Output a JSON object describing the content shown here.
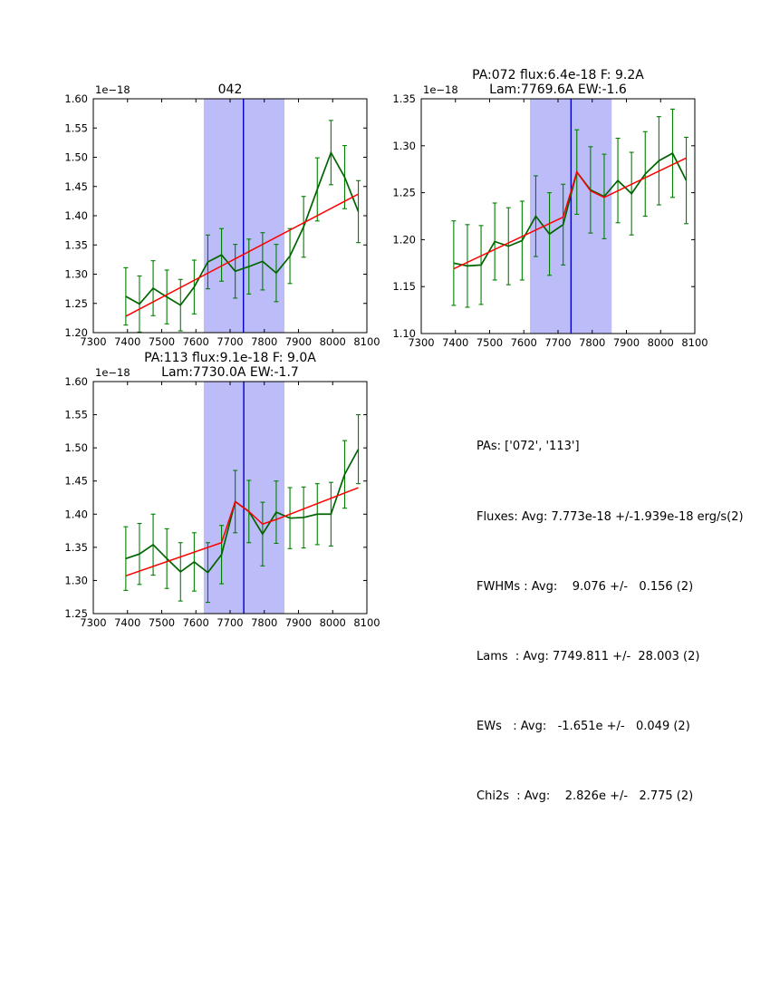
{
  "figure": {
    "background": "#ffffff"
  },
  "colors": {
    "data_line": "#006400",
    "error_bar": "#007f00",
    "fit_line": "#ff0000",
    "band_fill": "#bcbcf8",
    "marker_line": "#0000cc",
    "axis": "#000000",
    "text": "#000000"
  },
  "stats_panel": {
    "lines": [
      "PAs: ['072', '113']",
      "Fluxes: Avg: 7.773e-18 +/-1.939e-18 erg/s(2)",
      "FWHMs : Avg:    9.076 +/-   0.156 (2)",
      "Lams  : Avg: 7749.811 +/-  28.003 (2)",
      "EWs   : Avg:   -1.651e +/-   0.049 (2)",
      "Chi2s  : Avg:    2.826e +/-   2.775 (2)"
    ]
  },
  "chart_data": [
    {
      "id": "042",
      "type": "line",
      "title_lines": [
        "042"
      ],
      "offset_label": "1e−18",
      "xlim": [
        7300,
        8100
      ],
      "ylim": [
        1.2,
        1.6
      ],
      "xticks": [
        7300,
        7400,
        7500,
        7600,
        7700,
        7800,
        7900,
        8000,
        8100
      ],
      "xticklabels": [
        "7300",
        "7400",
        "7500",
        "7600",
        "7700",
        "7800",
        "7900",
        "8000",
        "8100"
      ],
      "yticks": [
        1.2,
        1.25,
        1.3,
        1.35,
        1.4,
        1.45,
        1.5,
        1.55,
        1.6
      ],
      "yticklabels": [
        "1.20",
        "1.25",
        "1.30",
        "1.35",
        "1.40",
        "1.45",
        "1.50",
        "1.55",
        "1.60"
      ],
      "band": [
        7623,
        7859
      ],
      "marker_x": 7739,
      "grid": false,
      "legend": null,
      "x": [
        7395,
        7435,
        7475,
        7515,
        7555,
        7595,
        7635,
        7675,
        7715,
        7755,
        7795,
        7835,
        7875,
        7915,
        7955,
        7995,
        8035,
        8075
      ],
      "y": [
        1.262,
        1.249,
        1.276,
        1.261,
        1.247,
        1.278,
        1.321,
        1.333,
        1.305,
        1.313,
        1.322,
        1.302,
        1.331,
        1.381,
        1.445,
        1.508,
        1.466,
        1.407
      ],
      "yerr": [
        0.049,
        0.048,
        0.047,
        0.046,
        0.044,
        0.046,
        0.046,
        0.045,
        0.046,
        0.047,
        0.049,
        0.049,
        0.047,
        0.052,
        0.054,
        0.055,
        0.054,
        0.053
      ],
      "fit": {
        "x": [
          7395,
          8075
        ],
        "y": [
          1.228,
          1.437
        ]
      }
    },
    {
      "id": "PA072",
      "type": "line",
      "title_lines": [
        "PA:072 flux:6.4e-18 F: 9.2A",
        "Lam:7769.6A EW:-1.6"
      ],
      "offset_label": "1e−18",
      "xlim": [
        7300,
        8100
      ],
      "ylim": [
        1.1,
        1.35
      ],
      "xticks": [
        7300,
        7400,
        7500,
        7600,
        7700,
        7800,
        7900,
        8000,
        8100
      ],
      "xticklabels": [
        "7300",
        "7400",
        "7500",
        "7600",
        "7700",
        "7800",
        "7900",
        "8000",
        "8100"
      ],
      "yticks": [
        1.1,
        1.15,
        1.2,
        1.25,
        1.3,
        1.35
      ],
      "yticklabels": [
        "1.10",
        "1.15",
        "1.20",
        "1.25",
        "1.30",
        "1.35"
      ],
      "band": [
        7618,
        7857
      ],
      "marker_x": 7738,
      "grid": false,
      "legend": null,
      "x": [
        7395,
        7435,
        7475,
        7515,
        7555,
        7595,
        7635,
        7675,
        7715,
        7755,
        7795,
        7835,
        7875,
        7915,
        7955,
        7995,
        8035,
        8075
      ],
      "y": [
        1.175,
        1.172,
        1.173,
        1.198,
        1.193,
        1.199,
        1.225,
        1.206,
        1.216,
        1.272,
        1.253,
        1.246,
        1.263,
        1.249,
        1.27,
        1.284,
        1.292,
        1.263
      ],
      "yerr": [
        0.045,
        0.044,
        0.042,
        0.041,
        0.041,
        0.042,
        0.043,
        0.044,
        0.043,
        0.045,
        0.046,
        0.045,
        0.045,
        0.044,
        0.045,
        0.047,
        0.047,
        0.046
      ],
      "fit": {
        "x": [
          7395,
          7715,
          7755,
          7795,
          7835,
          8075
        ],
        "y": [
          1.169,
          1.224,
          1.272,
          1.252,
          1.245,
          1.287
        ]
      }
    },
    {
      "id": "PA113",
      "type": "line",
      "title_lines": [
        "PA:113 flux:9.1e-18 F: 9.0A",
        "Lam:7730.0A EW:-1.7"
      ],
      "offset_label": "1e−18",
      "xlim": [
        7300,
        8100
      ],
      "ylim": [
        1.25,
        1.6
      ],
      "xticks": [
        7300,
        7400,
        7500,
        7600,
        7700,
        7800,
        7900,
        8000,
        8100
      ],
      "xticklabels": [
        "7300",
        "7400",
        "7500",
        "7600",
        "7700",
        "7800",
        "7900",
        "8000",
        "8100"
      ],
      "yticks": [
        1.25,
        1.3,
        1.35,
        1.4,
        1.45,
        1.5,
        1.55,
        1.6
      ],
      "yticklabels": [
        "1.25",
        "1.30",
        "1.35",
        "1.40",
        "1.45",
        "1.50",
        "1.55",
        "1.60"
      ],
      "band": [
        7623,
        7859
      ],
      "marker_x": 7740,
      "grid": false,
      "legend": null,
      "x": [
        7395,
        7435,
        7475,
        7515,
        7555,
        7595,
        7635,
        7675,
        7715,
        7755,
        7795,
        7835,
        7875,
        7915,
        7955,
        7995,
        8035,
        8075
      ],
      "y": [
        1.333,
        1.34,
        1.354,
        1.333,
        1.313,
        1.328,
        1.312,
        1.339,
        1.419,
        1.404,
        1.37,
        1.403,
        1.394,
        1.395,
        1.4,
        1.4,
        1.46,
        1.498
      ],
      "yerr": [
        0.048,
        0.046,
        0.046,
        0.045,
        0.044,
        0.044,
        0.045,
        0.044,
        0.047,
        0.047,
        0.048,
        0.047,
        0.046,
        0.046,
        0.046,
        0.048,
        0.051,
        0.052
      ],
      "fit": {
        "x": [
          7395,
          7675,
          7715,
          7755,
          7795,
          7835,
          8075
        ],
        "y": [
          1.307,
          1.357,
          1.419,
          1.404,
          1.385,
          1.392,
          1.44
        ]
      }
    }
  ]
}
